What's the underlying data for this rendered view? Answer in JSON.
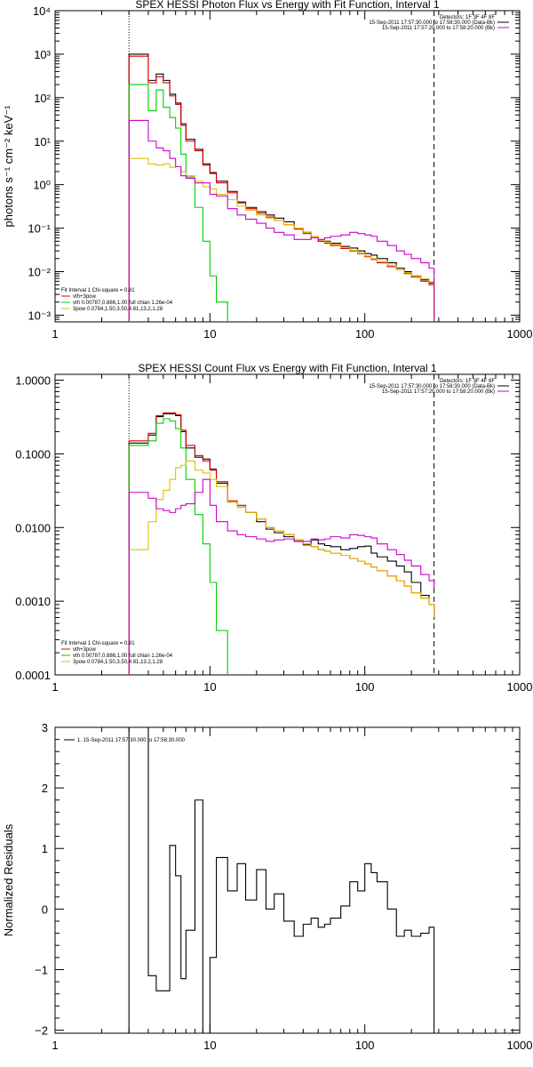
{
  "chart_data": [
    {
      "type": "line",
      "title": "SPEX HESSI Photon Flux vs Energy with Fit Function, Interval 1",
      "xlabel": "",
      "ylabel": "photons s⁻¹ cm⁻² keV⁻¹",
      "xscale": "log",
      "yscale": "log",
      "xlim": [
        1,
        1000
      ],
      "ylim": [
        0.0007,
        10000
      ],
      "x_tick_labels": [
        "1",
        "10",
        "100",
        "1000"
      ],
      "y_tick_labels": [
        "10⁻³",
        "10⁻²",
        "10⁻¹",
        "10⁰",
        "10¹",
        "10²",
        "10³",
        "10⁴"
      ],
      "legend_top_right": [
        "Detectors: 1F 3F 4F 8F",
        "15-Sep-2011 17:57:30.000 to 17:58:30.000 (Data-Bk)",
        "15-Sep-2011 17:57:20.000 to 17:58:20.000 (Bk)"
      ],
      "legend_bottom_left": [
        "Fit Interval 1    Chi-square = 0.81",
        "vth+3pow",
        "vth 0.00787,0.886,1.00   full chian 1.26e-04",
        "3pow 0.0784,1.50,3.50,4.81,13.2,1.28"
      ],
      "vlines": [
        {
          "x": 3,
          "style": "dotted"
        },
        {
          "x": 280,
          "style": "dashed"
        }
      ],
      "series": [
        {
          "name": "Data-Bk",
          "color": "#000000",
          "x": [
            3,
            3.5,
            4,
            4.5,
            5,
            5.5,
            6,
            6.5,
            7,
            8,
            9,
            10,
            11,
            13,
            15,
            17,
            20,
            23,
            26,
            30,
            35,
            40,
            45,
            50,
            55,
            60,
            70,
            80,
            90,
            100,
            110,
            120,
            140,
            160,
            180,
            200,
            230,
            260,
            280
          ],
          "y": [
            1000,
            1000,
            250,
            350,
            250,
            120,
            75,
            25,
            11,
            6.5,
            3,
            1.9,
            1.2,
            0.7,
            0.4,
            0.3,
            0.24,
            0.2,
            0.17,
            0.14,
            0.1,
            0.08,
            0.06,
            0.05,
            0.05,
            0.045,
            0.038,
            0.035,
            0.03,
            0.026,
            0.024,
            0.02,
            0.016,
            0.012,
            0.01,
            0.008,
            0.0065,
            0.0055,
            0.0007
          ]
        },
        {
          "name": "vth+3pow",
          "color": "#e00000",
          "x": [
            3,
            3.5,
            4,
            4.5,
            5,
            5.5,
            6,
            6.5,
            7,
            8,
            9,
            10,
            11,
            13,
            15,
            17,
            20,
            23,
            26,
            30,
            35,
            40,
            45,
            50,
            55,
            60,
            70,
            80,
            90,
            100,
            110,
            120,
            140,
            160,
            180,
            200,
            230,
            260,
            280
          ],
          "y": [
            900,
            900,
            220,
            300,
            220,
            110,
            70,
            23,
            10,
            6,
            2.8,
            1.8,
            1.1,
            0.65,
            0.38,
            0.28,
            0.22,
            0.18,
            0.15,
            0.12,
            0.095,
            0.075,
            0.06,
            0.05,
            0.045,
            0.04,
            0.034,
            0.03,
            0.026,
            0.022,
            0.019,
            0.016,
            0.013,
            0.011,
            0.009,
            0.0075,
            0.006,
            0.005,
            0.0007
          ]
        },
        {
          "name": "vth",
          "color": "#00cc00",
          "x": [
            3,
            3.5,
            4,
            4.5,
            5,
            5.5,
            6,
            6.5,
            7,
            8,
            9,
            10,
            11,
            13
          ],
          "y": [
            200,
            200,
            50,
            150,
            60,
            35,
            20,
            5,
            1.5,
            0.3,
            0.05,
            0.008,
            0.002,
            0.0007
          ]
        },
        {
          "name": "3pow",
          "color": "#e0c000",
          "x": [
            3,
            3.5,
            4,
            4.5,
            5,
            5.5,
            6,
            6.5,
            7,
            8,
            9,
            10,
            11,
            13,
            15,
            17,
            20,
            23,
            26,
            30,
            35,
            40,
            45,
            50,
            55,
            60,
            70,
            80,
            90,
            100,
            110,
            120,
            140,
            160,
            180,
            200,
            230,
            260,
            280
          ],
          "y": [
            4,
            4,
            3,
            2.8,
            3,
            2.5,
            2.6,
            2,
            1.6,
            1.2,
            0.9,
            0.8,
            0.6,
            0.45,
            0.32,
            0.26,
            0.2,
            0.17,
            0.15,
            0.12,
            0.1,
            0.08,
            0.065,
            0.055,
            0.048,
            0.043,
            0.036,
            0.031,
            0.027,
            0.023,
            0.02,
            0.017,
            0.014,
            0.011,
            0.0095,
            0.008,
            0.0068,
            0.0058,
            0.0007
          ]
        },
        {
          "name": "Bk",
          "color": "#cc00cc",
          "x": [
            3,
            3.5,
            4,
            4.5,
            5,
            5.5,
            6,
            6.5,
            7,
            8,
            9,
            10,
            11,
            13,
            15,
            17,
            20,
            23,
            26,
            30,
            35,
            40,
            45,
            50,
            55,
            60,
            70,
            80,
            90,
            100,
            110,
            120,
            140,
            160,
            180,
            200,
            230,
            260,
            280
          ],
          "y": [
            30,
            30,
            10,
            7,
            6,
            4,
            2.6,
            1.6,
            1.4,
            1.1,
            1.1,
            0.6,
            0.55,
            0.28,
            0.2,
            0.16,
            0.13,
            0.1,
            0.08,
            0.07,
            0.055,
            0.055,
            0.06,
            0.055,
            0.06,
            0.065,
            0.07,
            0.08,
            0.075,
            0.07,
            0.065,
            0.05,
            0.04,
            0.03,
            0.025,
            0.02,
            0.016,
            0.012,
            0.0007
          ]
        }
      ]
    },
    {
      "type": "line",
      "title": "SPEX HESSI Count Flux vs Energy with Fit Function, Interval 1",
      "xlabel": "",
      "ylabel": "",
      "xscale": "log",
      "yscale": "log",
      "xlim": [
        1,
        1000
      ],
      "ylim": [
        0.0001,
        1.2
      ],
      "x_tick_labels": [
        "1",
        "10",
        "100",
        "1000"
      ],
      "y_tick_labels": [
        "0.0001",
        "0.0010",
        "0.0100",
        "0.1000",
        "1.0000"
      ],
      "legend_top_right": [
        "Detectors: 1F 3F 4F 8F",
        "15-Sep-2011 17:57:30.000 to 17:58:30.000 (Data-Bk)",
        "15-Sep-2011 17:57:20.000 to 17:58:20.000 (Bk)"
      ],
      "legend_bottom_left": [
        "Fit Interval 1    Chi-square = 0.81",
        "vth+3pow",
        "vth 0.00787,0.886,1.00   full chian 1.26e-04",
        "3pow 0.0784,1.50,3.50,4.81,13.2,1.28"
      ],
      "vlines": [
        {
          "x": 3,
          "style": "dotted"
        },
        {
          "x": 280,
          "style": "dashed"
        }
      ],
      "series": [
        {
          "name": "Data-Bk",
          "color": "#000000",
          "x": [
            3,
            3.5,
            4,
            4.5,
            5,
            5.5,
            6,
            6.5,
            7,
            8,
            9,
            10,
            11,
            13,
            15,
            17,
            20,
            23,
            26,
            30,
            35,
            40,
            45,
            50,
            55,
            60,
            70,
            80,
            90,
            100,
            110,
            120,
            140,
            160,
            180,
            200,
            230,
            260,
            280
          ],
          "y": [
            0.14,
            0.14,
            0.18,
            0.32,
            0.35,
            0.35,
            0.33,
            0.2,
            0.12,
            0.09,
            0.085,
            0.062,
            0.04,
            0.022,
            0.019,
            0.016,
            0.012,
            0.0095,
            0.0085,
            0.0075,
            0.0065,
            0.0058,
            0.0068,
            0.006,
            0.0057,
            0.0055,
            0.005,
            0.0052,
            0.0055,
            0.0056,
            0.0045,
            0.004,
            0.0035,
            0.003,
            0.0025,
            0.0018,
            0.0012,
            0.0009,
            0.0006
          ]
        },
        {
          "name": "vth+3pow",
          "color": "#e00000",
          "x": [
            3,
            3.5,
            4,
            4.5,
            5,
            5.5,
            6,
            6.5,
            7,
            8,
            9,
            10,
            11,
            13,
            15,
            17,
            20,
            23,
            26,
            30,
            35,
            40,
            45,
            50,
            55,
            60,
            70,
            80,
            90,
            100,
            110,
            120,
            140,
            160,
            180,
            200,
            230,
            260,
            280
          ],
          "y": [
            0.15,
            0.15,
            0.19,
            0.33,
            0.36,
            0.36,
            0.34,
            0.21,
            0.13,
            0.095,
            0.08,
            0.06,
            0.042,
            0.023,
            0.02,
            0.016,
            0.013,
            0.01,
            0.009,
            0.008,
            0.0068,
            0.006,
            0.0055,
            0.005,
            0.0048,
            0.0045,
            0.0042,
            0.0038,
            0.0035,
            0.0032,
            0.0029,
            0.0026,
            0.0022,
            0.0019,
            0.0016,
            0.0013,
            0.0011,
            0.0009,
            0.0006
          ]
        },
        {
          "name": "vth",
          "color": "#00cc00",
          "x": [
            3,
            3.5,
            4,
            4.5,
            5,
            5.5,
            6,
            6.5,
            7,
            8,
            9,
            10,
            11,
            13
          ],
          "y": [
            0.13,
            0.13,
            0.15,
            0.26,
            0.3,
            0.28,
            0.22,
            0.12,
            0.045,
            0.015,
            0.006,
            0.0018,
            0.0004,
            0.0001
          ]
        },
        {
          "name": "3pow",
          "color": "#e0c000",
          "x": [
            3,
            3.5,
            4,
            4.5,
            5,
            5.5,
            6,
            6.5,
            7,
            8,
            9,
            10,
            11,
            13,
            15,
            17,
            20,
            23,
            26,
            30,
            35,
            40,
            45,
            50,
            55,
            60,
            70,
            80,
            90,
            100,
            110,
            120,
            140,
            160,
            180,
            200,
            230,
            260,
            280
          ],
          "y": [
            0.005,
            0.005,
            0.012,
            0.024,
            0.032,
            0.045,
            0.065,
            0.07,
            0.08,
            0.06,
            0.055,
            0.045,
            0.036,
            0.022,
            0.019,
            0.016,
            0.013,
            0.01,
            0.009,
            0.008,
            0.0068,
            0.006,
            0.0055,
            0.005,
            0.0048,
            0.0045,
            0.0042,
            0.0038,
            0.0035,
            0.0032,
            0.0029,
            0.0026,
            0.0022,
            0.0019,
            0.0016,
            0.0013,
            0.0011,
            0.0009,
            0.0006
          ]
        },
        {
          "name": "Bk",
          "color": "#cc00cc",
          "x": [
            3,
            3.5,
            4,
            4.5,
            5,
            5.5,
            6,
            6.5,
            7,
            8,
            9,
            10,
            11,
            13,
            15,
            17,
            20,
            23,
            26,
            30,
            35,
            40,
            45,
            50,
            55,
            60,
            70,
            80,
            90,
            100,
            110,
            120,
            140,
            160,
            180,
            200,
            230,
            260,
            280
          ],
          "y": [
            0.03,
            0.03,
            0.025,
            0.018,
            0.017,
            0.016,
            0.018,
            0.02,
            0.021,
            0.03,
            0.045,
            0.02,
            0.012,
            0.009,
            0.008,
            0.0075,
            0.007,
            0.0065,
            0.0068,
            0.007,
            0.0065,
            0.0065,
            0.007,
            0.0068,
            0.007,
            0.0075,
            0.0072,
            0.008,
            0.0078,
            0.0075,
            0.0072,
            0.006,
            0.005,
            0.0043,
            0.0036,
            0.003,
            0.0023,
            0.0019,
            0.0015
          ]
        }
      ]
    },
    {
      "type": "line",
      "title": "",
      "xlabel": "",
      "ylabel": "Normalized Residuals",
      "xscale": "log",
      "yscale": "linear",
      "xlim": [
        1,
        1000
      ],
      "ylim": [
        -2.05,
        3
      ],
      "x_tick_labels": [
        "1",
        "10",
        "100",
        "1000"
      ],
      "y_tick_labels": [
        "−2",
        "−1",
        "0",
        "1",
        "2",
        "3"
      ],
      "legend": [
        "1. 15-Sep-2011 17:57:30.000 to 17:58:30.000"
      ],
      "series": [
        {
          "name": "1. 15-Sep-2011 17:57:30.000 to 17:58:30.000",
          "color": "#000000",
          "x": [
            3,
            3.5,
            4,
            4.5,
            5,
            5.5,
            6,
            6.5,
            7,
            8,
            9,
            10,
            11,
            13,
            15,
            17,
            20,
            23,
            26,
            30,
            35,
            40,
            45,
            50,
            55,
            60,
            70,
            80,
            90,
            100,
            110,
            120,
            140,
            160,
            180,
            200,
            230,
            260,
            280
          ],
          "y": [
            3,
            3,
            -1.1,
            -1.35,
            -1.35,
            1.05,
            0.55,
            -1.15,
            -0.35,
            1.8,
            -2.05,
            -0.8,
            0.85,
            0.3,
            0.75,
            0.15,
            0.65,
            0.0,
            0.25,
            -0.2,
            -0.45,
            -0.25,
            -0.15,
            -0.3,
            -0.25,
            -0.15,
            0.05,
            0.45,
            0.3,
            0.75,
            0.6,
            0.45,
            0.0,
            -0.45,
            -0.35,
            -0.45,
            -0.4,
            -0.3,
            -0.3
          ]
        }
      ]
    }
  ]
}
